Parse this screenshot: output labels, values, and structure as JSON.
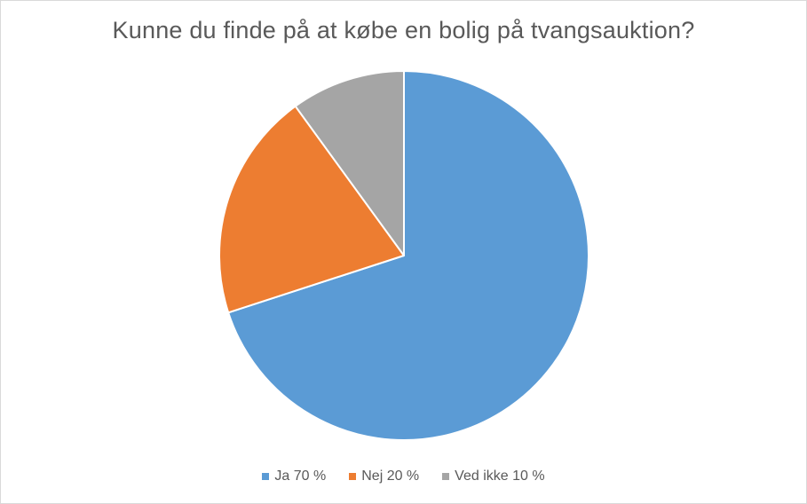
{
  "chart_data": {
    "type": "pie",
    "title": "Kunne du finde på at købe en bolig på tvangsauktion?",
    "categories": [
      "Ja",
      "Nej",
      "Ved ikke"
    ],
    "values": [
      70,
      20,
      10
    ],
    "legend_labels": [
      "Ja 70 %",
      "Nej 20 %",
      "Ved ikke 10 %"
    ],
    "colors": [
      "#5b9bd5",
      "#ed7d31",
      "#a5a5a5"
    ],
    "legend_position": "bottom",
    "start_angle": "top, clockwise"
  }
}
